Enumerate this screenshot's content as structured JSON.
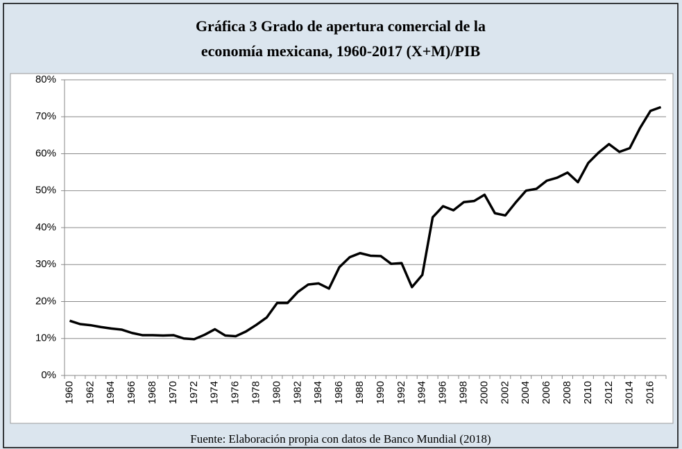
{
  "chart_data": {
    "type": "line",
    "title": [
      "Gráfica 3 Grado de apertura comercial de la",
      "economía mexicana, 1960-2017 (X+M)/PIB"
    ],
    "source": "Fuente: Elaboración propia con datos de Banco Mundial (2018)",
    "categories": [
      "1960",
      null,
      "1962",
      null,
      "1964",
      null,
      "1966",
      null,
      "1968",
      null,
      "1970",
      null,
      "1972",
      null,
      "1974",
      null,
      "1976",
      null,
      "1978",
      null,
      "1980",
      null,
      "1982",
      null,
      "1984",
      null,
      "1986",
      null,
      "1988",
      null,
      "1990",
      null,
      "1992",
      null,
      "1994",
      null,
      "1996",
      null,
      "1998",
      null,
      "2000",
      null,
      "2002",
      null,
      "2004",
      null,
      "2006",
      null,
      "2008",
      null,
      "2010",
      null,
      "2012",
      null,
      "2014",
      null,
      "2016",
      null
    ],
    "values": [
      14.8,
      13.9,
      13.6,
      13.1,
      12.7,
      12.4,
      11.5,
      10.9,
      10.9,
      10.8,
      10.9,
      10.0,
      9.8,
      11.0,
      12.5,
      10.8,
      10.6,
      11.9,
      13.7,
      15.7,
      19.6,
      19.6,
      22.6,
      24.6,
      24.9,
      23.5,
      29.3,
      32.0,
      33.1,
      32.4,
      32.3,
      30.2,
      30.4,
      23.9,
      27.2,
      42.8,
      45.8,
      44.7,
      46.9,
      47.2,
      48.9,
      43.9,
      43.3,
      46.8,
      50.0,
      50.5,
      52.7,
      53.5,
      54.9,
      52.3,
      57.5,
      60.3,
      62.6,
      60.5,
      61.5,
      67.0,
      71.6,
      72.6
    ],
    "color": "#000000",
    "ylim": [
      0,
      80
    ],
    "yticks": [
      {
        "value": 0,
        "label": "0%"
      },
      {
        "value": 10,
        "label": "10%"
      },
      {
        "value": 20,
        "label": "20%"
      },
      {
        "value": 30,
        "label": "30%"
      },
      {
        "value": 40,
        "label": "40%"
      },
      {
        "value": 50,
        "label": "50%"
      },
      {
        "value": 60,
        "label": "60%"
      },
      {
        "value": 70,
        "label": "70%"
      },
      {
        "value": 80,
        "label": "80%"
      }
    ],
    "grid": true
  }
}
